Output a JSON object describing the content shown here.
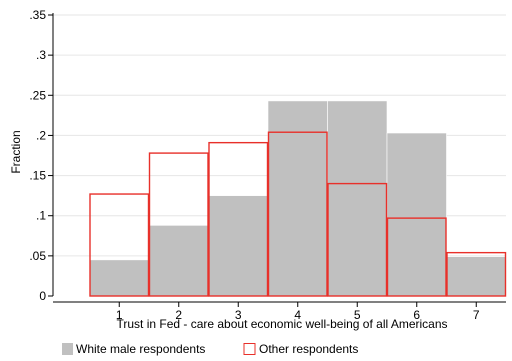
{
  "chart_data": {
    "type": "bar",
    "categories": [
      "1",
      "2",
      "3",
      "4",
      "5",
      "6",
      "7"
    ],
    "series": [
      {
        "name": "White male respondents",
        "style": "filled",
        "color": "#c0c0c0",
        "values": [
          0.045,
          0.088,
          0.125,
          0.243,
          0.243,
          0.203,
          0.049
        ]
      },
      {
        "name": "Other respondents",
        "style": "outline",
        "color": "#e8302a",
        "values": [
          0.127,
          0.178,
          0.191,
          0.204,
          0.14,
          0.097,
          0.054
        ]
      }
    ],
    "ylim": [
      0,
      0.35
    ],
    "yticks": [
      0,
      0.05,
      0.1,
      0.15,
      0.2,
      0.25,
      0.3,
      0.35
    ],
    "ytick_labels": [
      "0",
      ".05",
      ".1",
      ".15",
      ".2",
      ".25",
      ".3",
      ".35"
    ],
    "xlabel": "Trust in Fed - care about economic well-being of all Americans",
    "ylabel": "Fraction",
    "grid": true,
    "legend": "bottom"
  }
}
